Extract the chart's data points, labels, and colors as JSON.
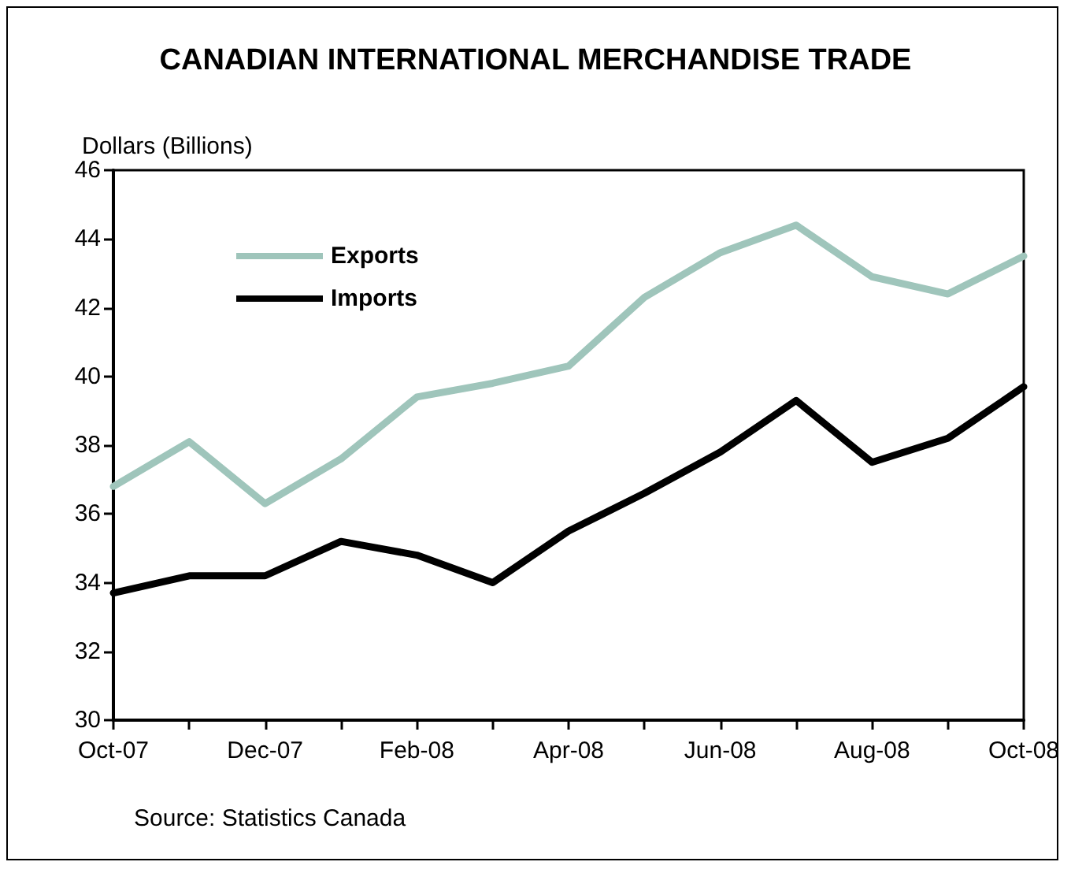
{
  "chart_data": {
    "type": "line",
    "title": "CANADIAN INTERNATIONAL MERCHANDISE TRADE",
    "ylabel": "Dollars (Billions)",
    "categories": [
      "Oct-07",
      null,
      "Dec-07",
      null,
      "Feb-08",
      null,
      "Apr-08",
      null,
      "Jun-08",
      null,
      "Aug-08",
      null,
      "Oct-08"
    ],
    "series": [
      {
        "name": "Exports",
        "color": "#9fc5bb",
        "values": [
          36.8,
          38.1,
          36.3,
          37.6,
          39.4,
          39.8,
          40.3,
          42.3,
          43.6,
          44.4,
          42.9,
          42.4,
          43.5
        ]
      },
      {
        "name": "Imports",
        "color": "#000000",
        "values": [
          33.7,
          34.2,
          34.2,
          35.2,
          34.8,
          34.0,
          35.5,
          36.6,
          37.8,
          39.3,
          37.5,
          38.2,
          39.7
        ]
      }
    ],
    "ylim": [
      30,
      46
    ],
    "yticks": [
      30,
      32,
      34,
      36,
      38,
      40,
      42,
      44,
      46
    ],
    "grid": false,
    "legend": "top left",
    "marker": "none",
    "line_style": "solid",
    "annotations": [
      "Source: Statistics Canada"
    ]
  }
}
